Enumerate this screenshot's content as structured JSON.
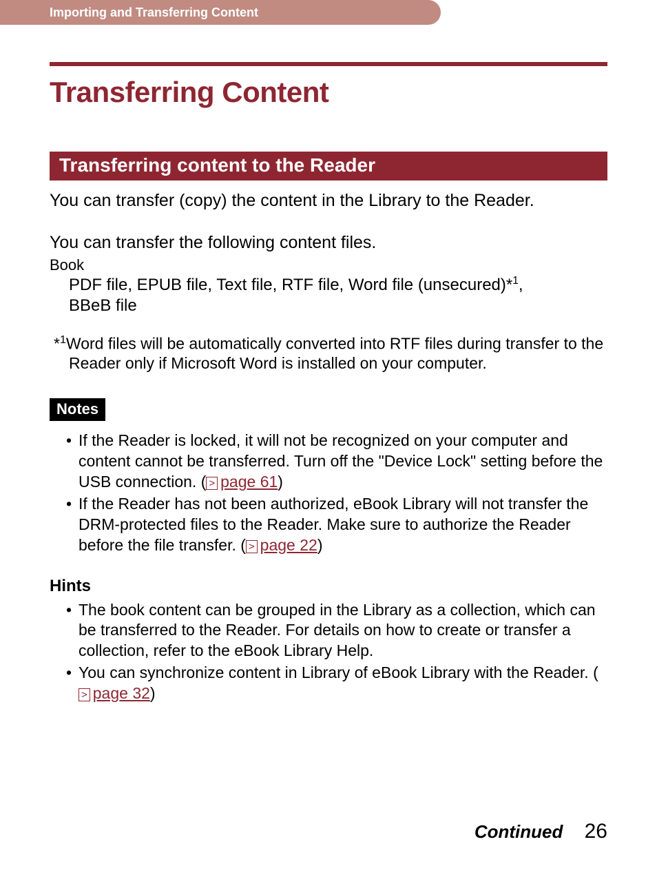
{
  "header": {
    "breadcrumb": "Importing and Transferring Content"
  },
  "title": "Transferring Content",
  "section_heading": "Transferring content to the Reader",
  "intro": "You can transfer (copy) the content in the Library to the Reader.",
  "files_intro": "You can transfer the following content files.",
  "book_label": "Book",
  "book_files_line1": "PDF file, EPUB file, Text file, RTF file, Word file (unsecured)*",
  "book_files_sup": "1",
  "book_files_line1_tail": ",",
  "book_files_line2": "BBeB file",
  "footnote_marker": "*",
  "footnote_sup": "1",
  "footnote_text": "Word files will be automatically converted into RTF files during transfer to the Reader only if Microsoft Word is installed on your computer.",
  "notes_label": "Notes",
  "notes": [
    {
      "pre": "If the Reader is locked, it will not be recognized on your computer and content cannot be transferred. Turn off the \"Device Lock\" setting before the USB connection. (",
      "ref": "page 61",
      "post": ")"
    },
    {
      "pre": "If the Reader has not been authorized, eBook Library will not transfer the DRM-protected files to the Reader. Make sure to authorize the Reader before the file transfer. (",
      "ref": "page 22",
      "post": ")"
    }
  ],
  "hints_label": "Hints",
  "hints": [
    {
      "pre": "The book content can be grouped in the Library as a collection, which can be transferred to the Reader. For details on how to create or transfer a collection, refer to the eBook Library Help.",
      "ref": "",
      "post": ""
    },
    {
      "pre": "You can synchronize content in Library of eBook Library with the Reader. (",
      "ref": "page 32",
      "post": ")"
    }
  ],
  "footer": {
    "continued": "Continued",
    "page_number": "26"
  },
  "colors": {
    "accent": "#8e2631",
    "header_bar": "#c18b82",
    "text": "#000000",
    "bg": "#ffffff"
  }
}
